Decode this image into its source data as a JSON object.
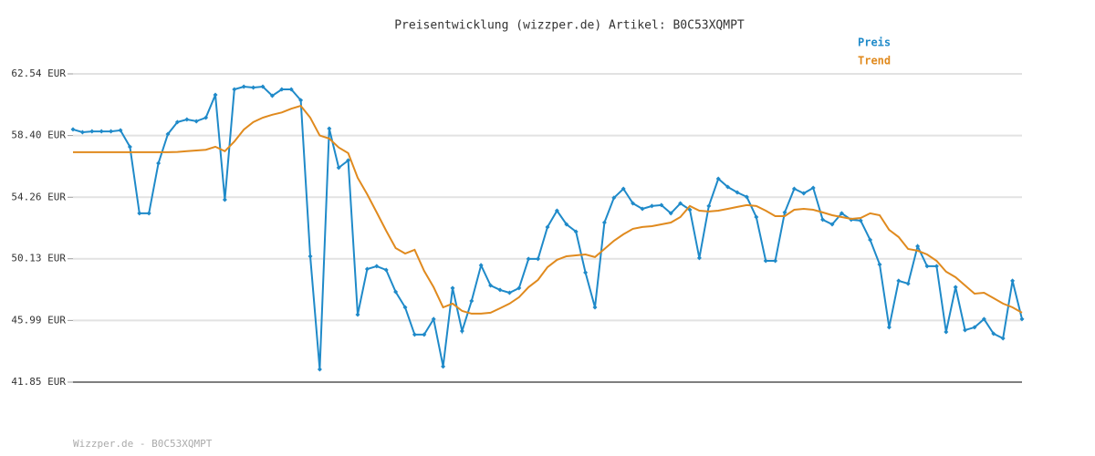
{
  "chart_data": {
    "type": "line",
    "title": "Preisentwicklung (wizzper.de) Artikel: B0C53XQMPT",
    "footer": "Wizzper.de - B0C53XQMPT",
    "categories": [
      null,
      null,
      null,
      null,
      null,
      null,
      null,
      null,
      null,
      null,
      null,
      null,
      null,
      null,
      null,
      null,
      null,
      null,
      null,
      null,
      null,
      null,
      null,
      null,
      null,
      null,
      null,
      null,
      null,
      null,
      null,
      null,
      null,
      null,
      null,
      null,
      null,
      null,
      null,
      null,
      null,
      null,
      null,
      null,
      null,
      null,
      null,
      null,
      null,
      null,
      null,
      null,
      null,
      null,
      null,
      null,
      null,
      null,
      null,
      null,
      null,
      null,
      null,
      null,
      null,
      null,
      null,
      null,
      null,
      null,
      null,
      null,
      null,
      null,
      null,
      null,
      null,
      null,
      null,
      null,
      null,
      null,
      null,
      null,
      null,
      null,
      null,
      null,
      null,
      null,
      null,
      null,
      null,
      null,
      null,
      null,
      null,
      null,
      null,
      null,
      null
    ],
    "series": [
      {
        "name": "Preis",
        "color": "#1f8ac9",
        "markers": true,
        "values": [
          58.81,
          58.62,
          58.68,
          58.68,
          58.68,
          58.75,
          57.64,
          53.18,
          53.18,
          56.54,
          58.5,
          59.3,
          59.48,
          59.36,
          59.6,
          61.13,
          54.09,
          61.5,
          61.68,
          61.62,
          61.68,
          61.07,
          61.5,
          61.5,
          60.77,
          50.3,
          42.71,
          58.87,
          56.24,
          56.73,
          46.38,
          49.44,
          49.63,
          49.38,
          47.91,
          46.87,
          45.04,
          45.04,
          46.08,
          42.9,
          48.16,
          45.28,
          47.3,
          49.69,
          48.34,
          48.04,
          47.85,
          48.16,
          50.12,
          50.12,
          52.26,
          53.36,
          52.44,
          51.95,
          49.2,
          46.87,
          52.56,
          54.22,
          54.83,
          53.85,
          53.48,
          53.67,
          53.73,
          53.18,
          53.85,
          53.42,
          50.18,
          53.67,
          55.5,
          54.95,
          54.58,
          54.28,
          52.93,
          49.99,
          49.99,
          53.24,
          54.83,
          54.52,
          54.89,
          52.75,
          52.44,
          53.18,
          52.75,
          52.69,
          51.4,
          49.75,
          45.53,
          48.65,
          48.46,
          50.97,
          49.63,
          49.63,
          45.22,
          48.22,
          45.34,
          45.53,
          46.08,
          45.1,
          44.79,
          48.65,
          46.08
        ]
      },
      {
        "name": "Trend",
        "color": "#e08a1e",
        "markers": false,
        "values": [
          57.28,
          57.28,
          57.28,
          57.28,
          57.28,
          57.28,
          57.28,
          57.28,
          57.28,
          57.28,
          57.28,
          57.3,
          57.35,
          57.4,
          57.45,
          57.65,
          57.35,
          58.0,
          58.8,
          59.3,
          59.6,
          59.8,
          59.95,
          60.2,
          60.4,
          59.6,
          58.4,
          58.2,
          57.6,
          57.22,
          55.56,
          54.46,
          53.24,
          52.01,
          50.85,
          50.48,
          50.73,
          49.32,
          48.22,
          46.87,
          47.12,
          46.63,
          46.45,
          46.45,
          46.51,
          46.81,
          47.12,
          47.55,
          48.22,
          48.71,
          49.57,
          50.06,
          50.3,
          50.36,
          50.42,
          50.24,
          50.79,
          51.34,
          51.77,
          52.14,
          52.26,
          52.32,
          52.44,
          52.56,
          52.93,
          53.67,
          53.36,
          53.3,
          53.36,
          53.48,
          53.61,
          53.73,
          53.67,
          53.36,
          52.99,
          52.99,
          53.42,
          53.48,
          53.42,
          53.24,
          53.05,
          52.93,
          52.81,
          52.87,
          53.18,
          53.05,
          52.07,
          51.59,
          50.79,
          50.67,
          50.42,
          49.99,
          49.26,
          48.89,
          48.34,
          47.79,
          47.85,
          47.49,
          47.12,
          46.87,
          46.51
        ]
      }
    ],
    "ylim": [
      41.85,
      62.54
    ],
    "yticks": [
      {
        "value": 41.85,
        "label": "41.85 EUR"
      },
      {
        "value": 45.99,
        "label": "45.99 EUR"
      },
      {
        "value": 50.13,
        "label": "50.13 EUR"
      },
      {
        "value": 54.26,
        "label": "54.26 EUR"
      },
      {
        "value": 58.4,
        "label": "58.40 EUR"
      },
      {
        "value": 62.54,
        "label": "62.54 EUR"
      }
    ],
    "grid": true
  }
}
